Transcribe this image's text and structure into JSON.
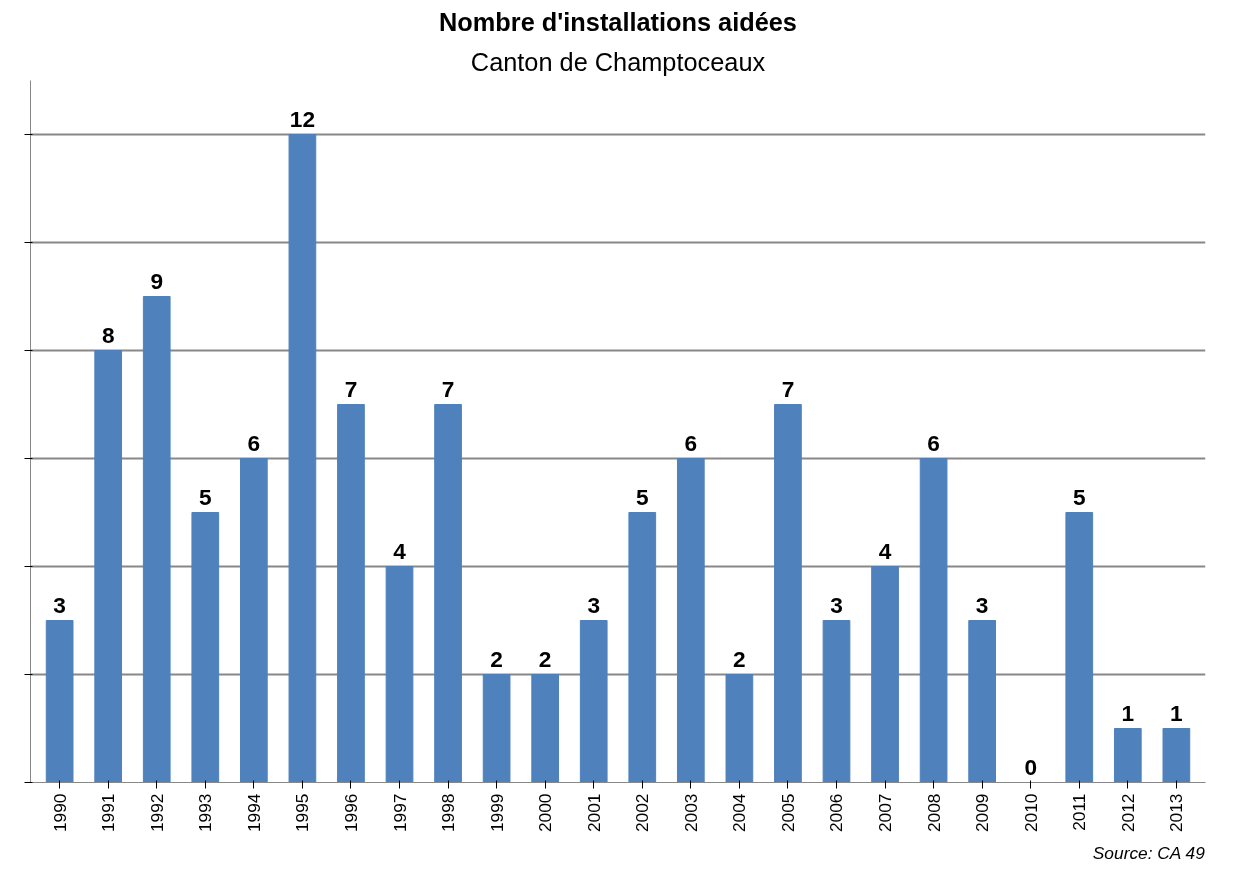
{
  "chart_data": {
    "type": "bar",
    "title": "Nombre d'installations aidées",
    "subtitle": "Canton de Champtoceaux",
    "categories": [
      "1990",
      "1991",
      "1992",
      "1993",
      "1994",
      "1995",
      "1996",
      "1997",
      "1998",
      "1999",
      "2000",
      "2001",
      "2002",
      "2003",
      "2004",
      "2005",
      "2006",
      "2007",
      "2008",
      "2009",
      "2010",
      "2011",
      "2012",
      "2013"
    ],
    "values": [
      3,
      8,
      9,
      5,
      6,
      12,
      7,
      4,
      7,
      2,
      2,
      3,
      5,
      6,
      2,
      7,
      3,
      4,
      6,
      3,
      0,
      5,
      1,
      1
    ],
    "color": "#4f81bd",
    "ylim": [
      0,
      13
    ],
    "yticks": [
      {
        "value": 0,
        "label": null
      },
      {
        "value": 2,
        "label": null
      },
      {
        "value": 4,
        "label": null
      },
      {
        "value": 6,
        "label": null
      },
      {
        "value": 8,
        "label": null
      },
      {
        "value": 10,
        "label": null
      },
      {
        "value": 12,
        "label": null
      }
    ],
    "grid": "y",
    "data_labels": true,
    "tick_labels": "x",
    "annotations": [
      "Source: CA 49"
    ]
  }
}
